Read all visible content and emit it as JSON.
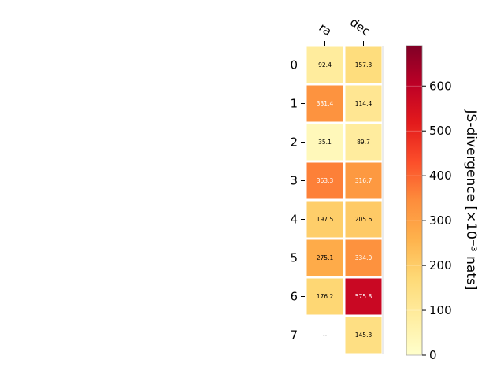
{
  "chart_data": {
    "type": "heatmap",
    "columns": [
      "ra",
      "dec"
    ],
    "rows": [
      "0",
      "1",
      "2",
      "3",
      "4",
      "5",
      "6",
      "7"
    ],
    "values": [
      [
        92.4,
        157.3
      ],
      [
        331.4,
        114.4
      ],
      [
        35.1,
        89.7
      ],
      [
        363.3,
        316.7
      ],
      [
        197.5,
        205.6
      ],
      [
        275.1,
        334.0
      ],
      [
        176.2,
        575.8
      ],
      [
        null,
        145.3
      ]
    ],
    "cell_labels": [
      [
        "92.4",
        "157.3"
      ],
      [
        "331.4",
        "114.4"
      ],
      [
        "35.1",
        "89.7"
      ],
      [
        "363.3",
        "316.7"
      ],
      [
        "197.5",
        "205.6"
      ],
      [
        "275.1",
        "334.0"
      ],
      [
        "176.2",
        "575.8"
      ],
      [
        "--",
        "145.3"
      ]
    ],
    "colorbar": {
      "label": "JS-divergence [×10⁻³ nats]",
      "range": [
        0,
        690
      ],
      "ticks": [
        0,
        100,
        200,
        300,
        400,
        500,
        600
      ],
      "colormap": "YlOrRd"
    }
  }
}
